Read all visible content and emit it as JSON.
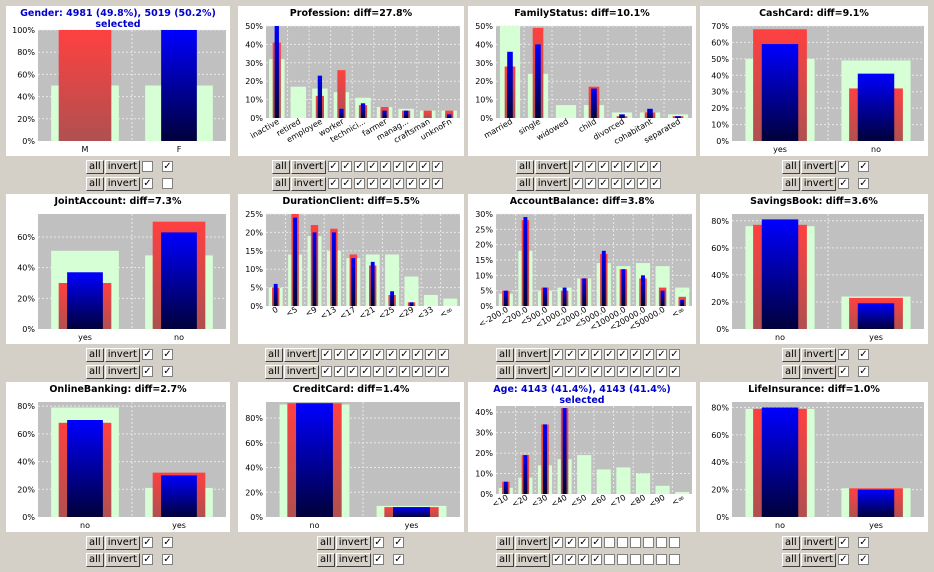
{
  "colors": {
    "background": "#d4d0c8",
    "plot": "#c0c0c0",
    "grid": "#e8e8e8",
    "pale": "#d6ffd6",
    "red": "#ff3030",
    "blue": "#0000ff"
  },
  "controls": {
    "all_label": "all",
    "invert_label": "invert",
    "check_mark": "✓"
  },
  "charts": [
    {
      "title": "Gender: 4981 (49.8%), 5019 (50.2%)",
      "subtitle": "selected",
      "selected": true,
      "yticks": [
        "100%",
        "80%",
        "60%",
        "40%",
        "20%",
        "0%"
      ],
      "ymax": 100,
      "rotate": false,
      "categories": [
        "M",
        "F"
      ],
      "pale": [
        50,
        50
      ],
      "red": [
        100,
        0
      ],
      "blue": [
        0,
        100
      ],
      "rows": [
        [
          false,
          true
        ],
        [
          true,
          false
        ]
      ]
    },
    {
      "title": "Profession: diff=27.8%",
      "selected": false,
      "yticks": [
        "50%",
        "40%",
        "30%",
        "20%",
        "10%",
        "0%"
      ],
      "ymax": 50,
      "rotate": true,
      "categories": [
        "inactive",
        "retired",
        "employee",
        "worker",
        "technici...",
        "farmer",
        "manag...",
        "craftsman",
        "unknoFn"
      ],
      "pale": [
        32,
        17,
        16,
        14,
        11,
        6,
        5,
        4,
        4
      ],
      "red": [
        41,
        0,
        12,
        26,
        7,
        6,
        4,
        4,
        4
      ],
      "blue": [
        55,
        0,
        23,
        5,
        8,
        4,
        4,
        0,
        2
      ],
      "rows": [
        [
          true,
          true,
          true,
          true,
          true,
          true,
          true,
          true,
          true
        ],
        [
          true,
          true,
          true,
          true,
          true,
          true,
          true,
          true,
          true
        ]
      ]
    },
    {
      "title": "FamilyStatus: diff=10.1%",
      "selected": false,
      "yticks": [
        "50%",
        "40%",
        "30%",
        "20%",
        "10%",
        "0%"
      ],
      "ymax": 50,
      "rotate": true,
      "categories": [
        "married",
        "single",
        "widowed",
        "child",
        "divorced",
        "cohabitant",
        "separated"
      ],
      "pale": [
        55,
        24,
        7,
        7,
        3,
        3,
        2
      ],
      "red": [
        28,
        49,
        0,
        17,
        1,
        3,
        1
      ],
      "blue": [
        36,
        40,
        0,
        16,
        2,
        5,
        1
      ],
      "rows": [
        [
          true,
          true,
          true,
          true,
          true,
          true,
          true
        ],
        [
          true,
          true,
          true,
          true,
          true,
          true,
          true
        ]
      ]
    },
    {
      "title": "CashCard: diff=9.1%",
      "selected": false,
      "yticks": [
        "70%",
        "60%",
        "50%",
        "40%",
        "30%",
        "20%",
        "10%",
        "0%"
      ],
      "ymax": 70,
      "rotate": false,
      "categories": [
        "yes",
        "no"
      ],
      "pale": [
        50,
        49
      ],
      "red": [
        68,
        32
      ],
      "blue": [
        59,
        41
      ],
      "rows": [
        [
          true,
          true
        ],
        [
          true,
          true
        ]
      ]
    },
    {
      "title": "JointAccount: diff=7.3%",
      "selected": false,
      "yticks": [
        "60%",
        "40%",
        "20%",
        "0%"
      ],
      "ymax": 75,
      "rotate": false,
      "categories": [
        "yes",
        "no"
      ],
      "pale": [
        51,
        48
      ],
      "red": [
        30,
        70
      ],
      "blue": [
        37,
        63
      ],
      "rows": [
        [
          true,
          true
        ],
        [
          true,
          true
        ]
      ]
    },
    {
      "title": "DurationClient: diff=5.5%",
      "selected": false,
      "yticks": [
        "25%",
        "20%",
        "15%",
        "10%",
        "5%",
        "0%"
      ],
      "ymax": 25,
      "rotate": true,
      "categories": [
        "0",
        "<5",
        "<9",
        "<13",
        "<17",
        "<21",
        "<25",
        "<29",
        "<33",
        "<∞"
      ],
      "pale": [
        5,
        14,
        19,
        15,
        13,
        14,
        14,
        8,
        3,
        2
      ],
      "red": [
        5,
        25,
        22,
        21,
        14,
        11,
        3,
        1,
        0,
        0
      ],
      "blue": [
        6,
        24,
        20,
        20,
        13,
        12,
        4,
        1,
        0,
        0
      ],
      "rows": [
        [
          true,
          true,
          true,
          true,
          true,
          true,
          true,
          true,
          true,
          true
        ],
        [
          true,
          true,
          true,
          true,
          true,
          true,
          true,
          true,
          true,
          true
        ]
      ]
    },
    {
      "title": "AccountBalance: diff=3.8%",
      "selected": false,
      "yticks": [
        "30%",
        "25%",
        "20%",
        "15%",
        "10%",
        "5%",
        "0%"
      ],
      "ymax": 30,
      "rotate": true,
      "categories": [
        "<-200.0",
        "<200.0",
        "<500.0",
        "<1000.0",
        "<2000.0",
        "<5000.0",
        "<10000.0",
        "<20000.0",
        "<50000.0",
        "<∞"
      ],
      "pale": [
        4,
        18,
        5,
        6,
        9,
        14,
        13,
        14,
        13,
        6
      ],
      "red": [
        5,
        28,
        6,
        5,
        9,
        17,
        12,
        9,
        6,
        3
      ],
      "blue": [
        5,
        29,
        6,
        6,
        9,
        18,
        12,
        10,
        5,
        2
      ],
      "rows": [
        [
          true,
          true,
          true,
          true,
          true,
          true,
          true,
          true,
          true,
          true
        ],
        [
          true,
          true,
          true,
          true,
          true,
          true,
          true,
          true,
          true,
          true
        ]
      ]
    },
    {
      "title": "SavingsBook: diff=3.6%",
      "selected": false,
      "yticks": [
        "80%",
        "60%",
        "40%",
        "20%",
        "0%"
      ],
      "ymax": 85,
      "rotate": false,
      "categories": [
        "no",
        "yes"
      ],
      "pale": [
        76,
        24
      ],
      "red": [
        77,
        23
      ],
      "blue": [
        81,
        19
      ],
      "rows": [
        [
          true,
          true
        ],
        [
          true,
          true
        ]
      ]
    },
    {
      "title": "OnlineBanking: diff=2.7%",
      "selected": false,
      "yticks": [
        "80%",
        "60%",
        "40%",
        "20%",
        "0%"
      ],
      "ymax": 83,
      "rotate": false,
      "categories": [
        "no",
        "yes"
      ],
      "pale": [
        79,
        21
      ],
      "red": [
        68,
        32
      ],
      "blue": [
        70,
        30
      ],
      "rows": [
        [
          true,
          true
        ],
        [
          true,
          true
        ]
      ]
    },
    {
      "title": "CreditCard: diff=1.4%",
      "selected": false,
      "yticks": [
        "80%",
        "60%",
        "40%",
        "20%",
        "0%"
      ],
      "ymax": 93,
      "rotate": false,
      "categories": [
        "no",
        "yes"
      ],
      "pale": [
        91,
        9
      ],
      "red": [
        92,
        8
      ],
      "blue": [
        92,
        8
      ],
      "rows": [
        [
          true,
          true
        ],
        [
          true,
          true
        ]
      ]
    },
    {
      "title": "Age: 4143 (41.4%), 4143 (41.4%)",
      "subtitle": "selected",
      "selected": true,
      "yticks": [
        "40%",
        "30%",
        "20%",
        "10%",
        "0%"
      ],
      "ymax": 43,
      "rotate": true,
      "categories": [
        "<10",
        "<20",
        "<30",
        "<40",
        "<50",
        "<60",
        "<70",
        "<80",
        "<90",
        "<∞"
      ],
      "pale": [
        3,
        8,
        14,
        17,
        19,
        12,
        13,
        10,
        4,
        1
      ],
      "red": [
        6,
        19,
        34,
        42,
        0,
        0,
        0,
        0,
        0,
        0
      ],
      "blue": [
        6,
        19,
        34,
        42,
        0,
        0,
        0,
        0,
        0,
        0
      ],
      "rows": [
        [
          true,
          true,
          true,
          true,
          false,
          false,
          false,
          false,
          false,
          false
        ],
        [
          true,
          true,
          true,
          true,
          false,
          false,
          false,
          false,
          false,
          false
        ]
      ]
    },
    {
      "title": "LifeInsurance: diff=1.0%",
      "selected": false,
      "yticks": [
        "80%",
        "60%",
        "40%",
        "20%",
        "0%"
      ],
      "ymax": 84,
      "rotate": false,
      "categories": [
        "no",
        "yes"
      ],
      "pale": [
        79,
        21
      ],
      "red": [
        79,
        21
      ],
      "blue": [
        80,
        20
      ],
      "rows": [
        [
          true,
          true
        ],
        [
          true,
          true
        ]
      ]
    }
  ]
}
